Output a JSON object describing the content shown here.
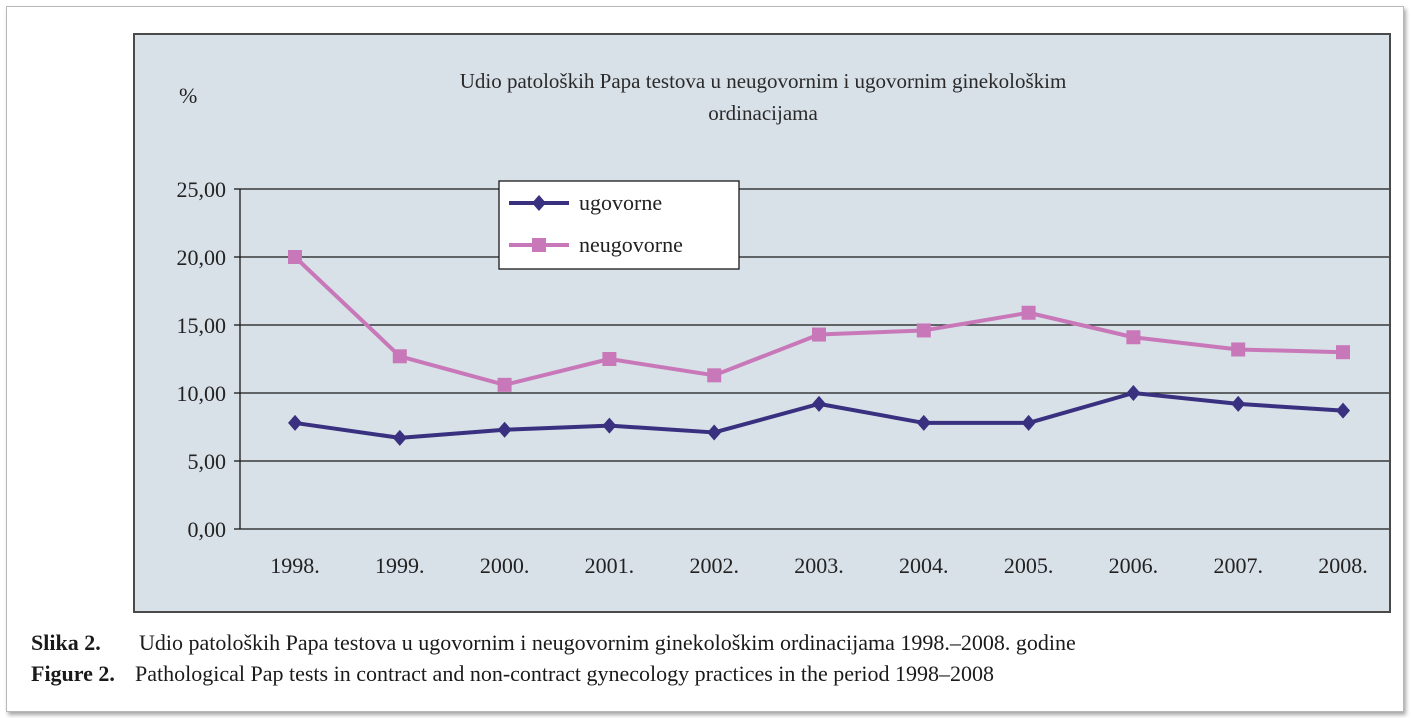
{
  "chart_data": {
    "type": "line",
    "title_lines": [
      "Udio patoloških Papa testova u neugovornim i ugovornim ginekološkim",
      "ordinacijama"
    ],
    "ylabel": "%",
    "xlabel": "",
    "categories": [
      "1998.",
      "1999.",
      "2000.",
      "2001.",
      "2002.",
      "2003.",
      "2004.",
      "2005.",
      "2006.",
      "2007.",
      "2008."
    ],
    "ylim": [
      0,
      25
    ],
    "yticks": [
      0,
      5,
      10,
      15,
      20,
      25
    ],
    "ytick_labels": [
      "0,00",
      "5,00",
      "10,00",
      "15,00",
      "20,00",
      "25,00"
    ],
    "grid": "horizontal",
    "legend_position": "top-left, inside plot",
    "series": [
      {
        "name": "ugovorne",
        "color": "#39307f",
        "marker": "diamond",
        "values": [
          7.8,
          6.7,
          7.3,
          7.6,
          7.1,
          9.2,
          7.8,
          7.8,
          10.0,
          9.2,
          8.7
        ]
      },
      {
        "name": "neugovorne",
        "color": "#c878b8",
        "marker": "square",
        "values": [
          20.0,
          12.7,
          10.6,
          12.5,
          11.3,
          14.3,
          14.6,
          15.9,
          14.1,
          13.2,
          13.0
        ]
      }
    ]
  },
  "caption": {
    "line1_label": "Slika 2.",
    "line1_text": "Udio patoloških Papa testova u ugovornim i neugovornim ginekološkim ordinacijama 1998.–2008. godine",
    "line2_label": "Figure 2.",
    "line2_text": "Pathological Pap tests in contract and non-contract gynecology practices in the period 1998–2008"
  }
}
